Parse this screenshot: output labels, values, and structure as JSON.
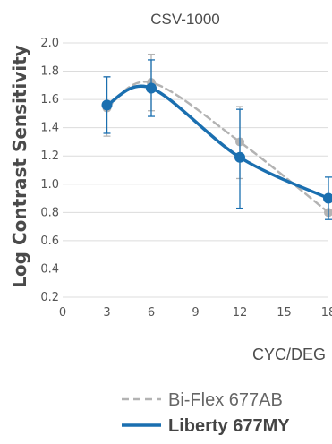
{
  "chart_data": {
    "type": "line",
    "title": "CSV-1000",
    "xlabel": "CYC/DEG",
    "ylabel": "Log Contrast Sensitivity",
    "x_ticks": [
      0,
      3,
      6,
      9,
      12,
      15,
      18
    ],
    "x_tick_labels": [
      "0",
      "3",
      "6",
      "9",
      "12",
      "15",
      "18"
    ],
    "y_ticks": [
      0.2,
      0.4,
      0.6,
      0.8,
      1.0,
      1.2,
      1.4,
      1.6,
      1.8,
      2.0
    ],
    "y_tick_labels": [
      "0.2",
      "0.4",
      "0.6",
      "0.8",
      "1.0",
      "1.2",
      "1.4",
      "1.6",
      "1.8",
      "2.0"
    ],
    "xlim": [
      0,
      18
    ],
    "ylim": [
      0.2,
      2.0
    ],
    "grid": "horizontal",
    "legend_position": "bottom-right",
    "series": [
      {
        "name": "Bi-Flex 677AB",
        "style": "dashed",
        "color": "#b3b3b3",
        "x": [
          3,
          6,
          12,
          18
        ],
        "y": [
          1.54,
          1.72,
          1.3,
          0.8
        ],
        "err_low": [
          1.34,
          1.52,
          1.04,
          0.8
        ],
        "err_high": [
          1.76,
          1.92,
          1.55,
          0.8
        ]
      },
      {
        "name": "Liberty 677MY",
        "style": "solid",
        "color": "#1a6fb0",
        "x": [
          3,
          6,
          12,
          18
        ],
        "y": [
          1.56,
          1.68,
          1.19,
          0.9
        ],
        "err_low": [
          1.36,
          1.48,
          0.83,
          0.75
        ],
        "err_high": [
          1.76,
          1.88,
          1.53,
          1.05
        ]
      }
    ]
  }
}
